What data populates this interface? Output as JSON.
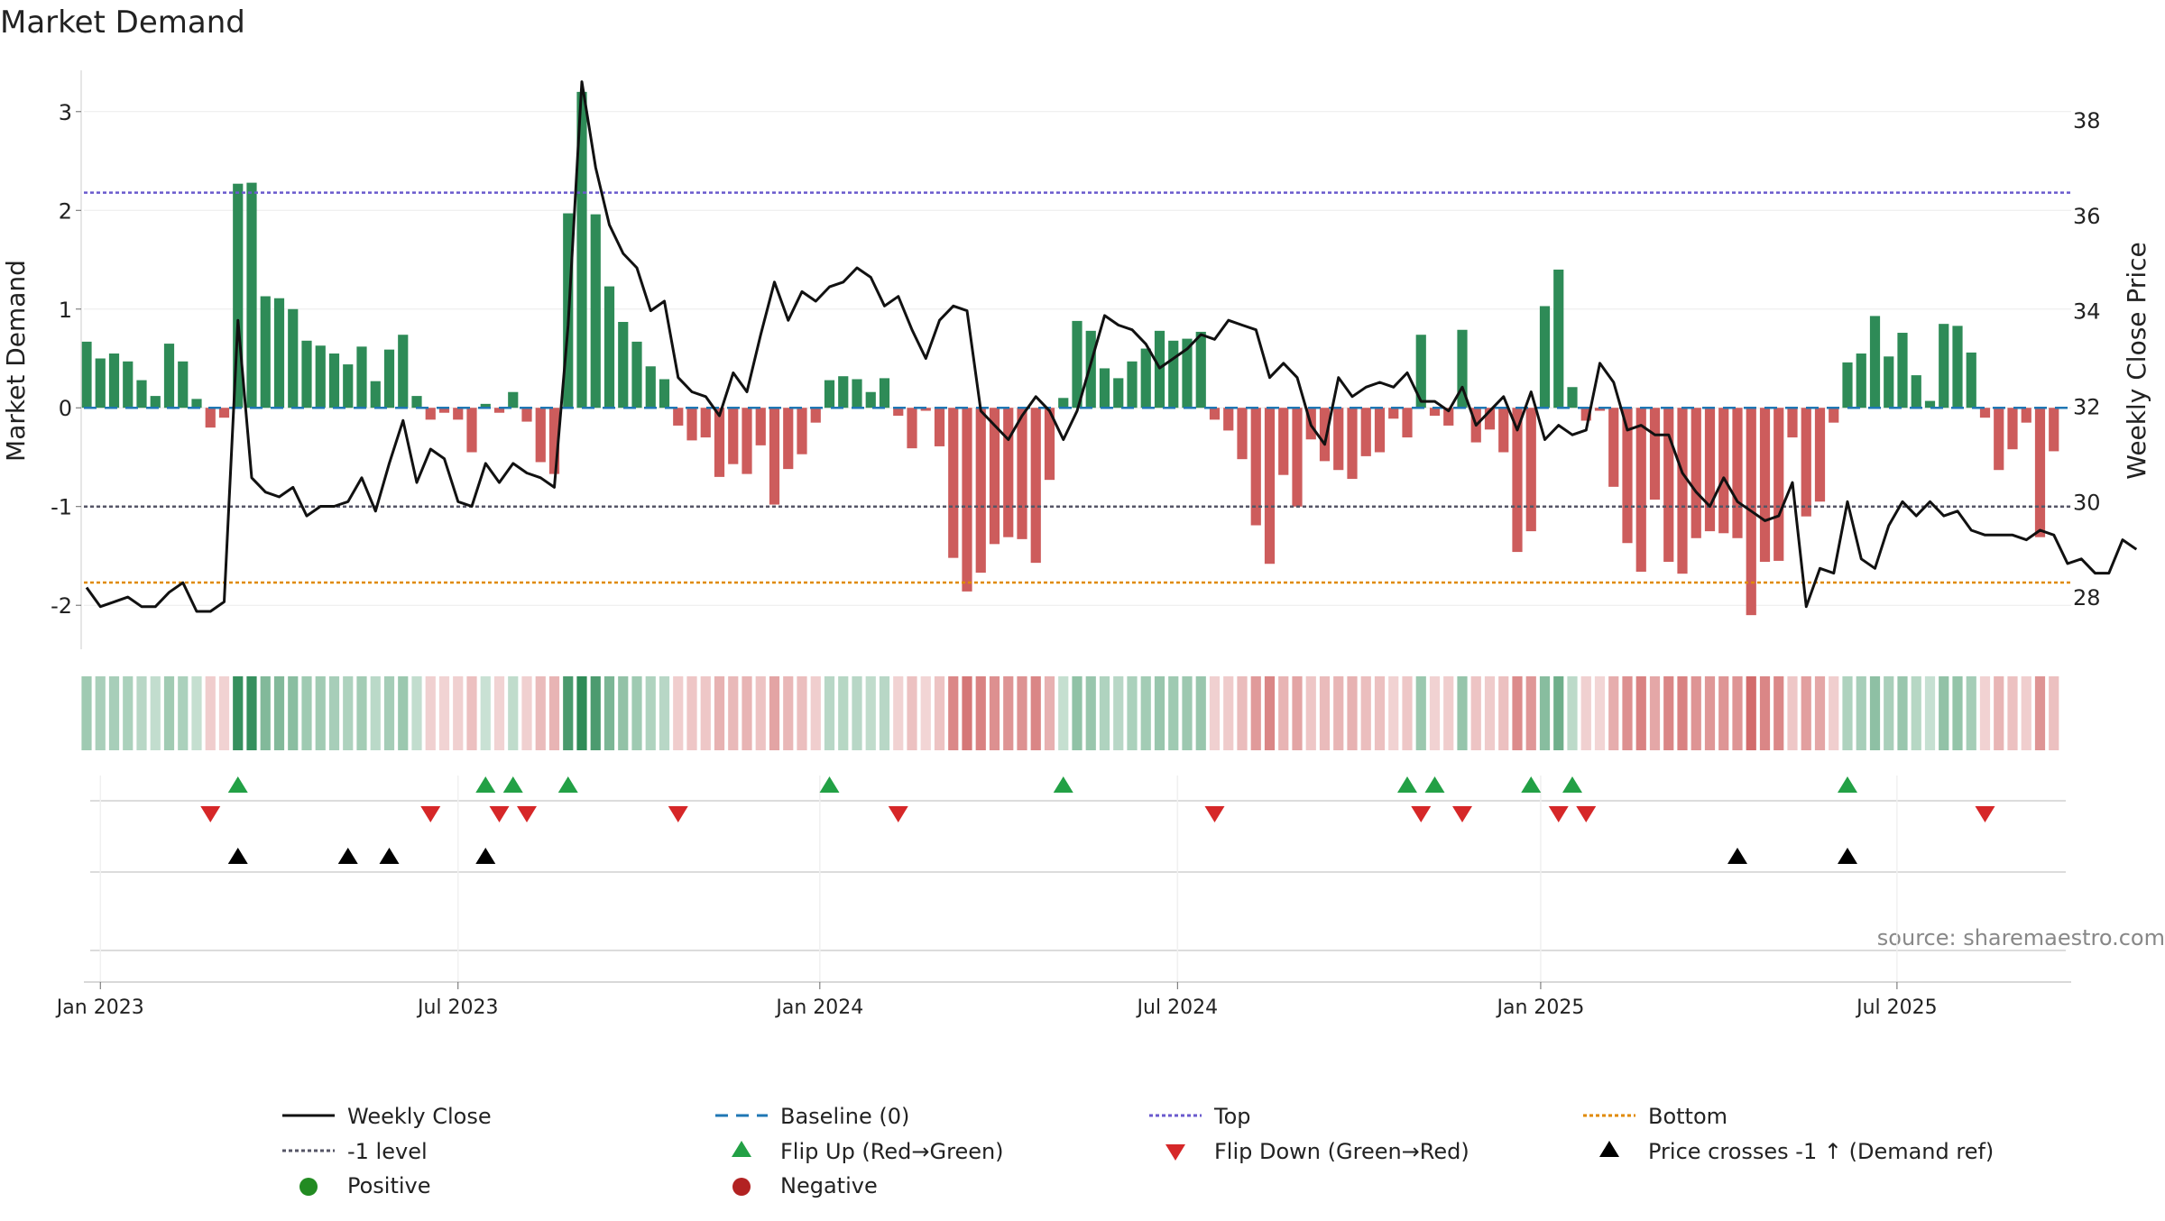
{
  "chart_data": {
    "type": "bar",
    "title": "Market Demand",
    "ylabel": "Market Demand",
    "ylabel_right": "Weekly Close Price",
    "ylim": [
      -2.4,
      3.4
    ],
    "ylim_right": [
      27,
      39
    ],
    "yticks": [
      -2,
      -1,
      0,
      1,
      2,
      3
    ],
    "yticks_right": [
      28,
      30,
      32,
      34,
      36,
      38
    ],
    "x_start": "2022-12-26",
    "xticks": [
      {
        "label": "Jan 2023",
        "week": 1
      },
      {
        "label": "Jul 2023",
        "week": 27
      },
      {
        "label": "Jan 2024",
        "week": 53.3
      },
      {
        "label": "Jul 2024",
        "week": 79.3
      },
      {
        "label": "Jan 2025",
        "week": 105.7
      },
      {
        "label": "Jul 2025",
        "week": 131.6
      }
    ],
    "levels": {
      "top": 2.18,
      "minus_one": -1.0,
      "bottom": -1.77,
      "baseline": 0
    },
    "demand": [
      0.67,
      0.5,
      0.55,
      0.47,
      0.28,
      0.12,
      0.65,
      0.47,
      0.09,
      -0.2,
      -0.1,
      2.27,
      2.28,
      1.13,
      1.11,
      1.0,
      0.68,
      0.63,
      0.55,
      0.44,
      0.62,
      0.27,
      0.59,
      0.74,
      0.12,
      -0.12,
      -0.05,
      -0.12,
      -0.45,
      0.04,
      -0.05,
      0.16,
      -0.14,
      -0.55,
      -0.67,
      1.97,
      3.2,
      1.96,
      1.23,
      0.87,
      0.67,
      0.42,
      0.29,
      -0.18,
      -0.33,
      -0.3,
      -0.7,
      -0.57,
      -0.67,
      -0.38,
      -0.98,
      -0.62,
      -0.47,
      -0.15,
      0.28,
      0.32,
      0.29,
      0.16,
      0.3,
      -0.08,
      -0.41,
      -0.03,
      -0.39,
      -1.52,
      -1.86,
      -1.67,
      -1.38,
      -1.31,
      -1.33,
      -1.57,
      -0.73,
      0.1,
      0.88,
      0.78,
      0.4,
      0.3,
      0.47,
      0.6,
      0.78,
      0.68,
      0.7,
      0.77,
      -0.12,
      -0.23,
      -0.52,
      -1.19,
      -1.58,
      -0.68,
      -1.0,
      -0.32,
      -0.54,
      -0.63,
      -0.72,
      -0.49,
      -0.45,
      -0.11,
      -0.3,
      0.74,
      -0.08,
      -0.18,
      0.79,
      -0.35,
      -0.22,
      -0.45,
      -1.46,
      -1.25,
      1.03,
      1.4,
      0.21,
      -0.13,
      -0.03,
      -0.8,
      -1.37,
      -1.66,
      -0.93,
      -1.56,
      -1.68,
      -1.32,
      -1.25,
      -1.27,
      -1.32,
      -2.1,
      -1.56,
      -1.55,
      -0.3,
      -1.1,
      -0.95,
      -0.15,
      0.46,
      0.55,
      0.93,
      0.52,
      0.76,
      0.33,
      0.07,
      0.85,
      0.83,
      0.56,
      -0.1,
      -0.63,
      -0.42,
      -0.15,
      -1.31,
      -0.44
    ],
    "series": [
      {
        "name": "Weekly Close",
        "values": [
          28.2,
          27.8,
          27.9,
          28.0,
          27.8,
          27.8,
          28.1,
          28.3,
          27.7,
          27.7,
          27.9,
          33.8,
          30.5,
          30.2,
          30.1,
          30.3,
          29.7,
          29.9,
          29.9,
          30.0,
          30.5,
          29.8,
          30.8,
          31.7,
          30.4,
          31.1,
          30.9,
          30.0,
          29.9,
          30.8,
          30.4,
          30.8,
          30.6,
          30.5,
          30.3,
          33.7,
          38.8,
          37.0,
          35.8,
          35.2,
          34.9,
          34.0,
          34.2,
          32.6,
          32.3,
          32.2,
          31.8,
          32.7,
          32.3,
          33.5,
          34.6,
          33.8,
          34.4,
          34.2,
          34.5,
          34.6,
          34.9,
          34.7,
          34.1,
          34.3,
          33.6,
          33.0,
          33.8,
          34.1,
          34.0,
          31.9,
          31.6,
          31.3,
          31.8,
          32.2,
          31.9,
          31.3,
          31.9,
          32.9,
          33.9,
          33.7,
          33.6,
          33.3,
          32.8,
          33.0,
          33.2,
          33.5,
          33.4,
          33.8,
          33.7,
          33.6,
          32.6,
          32.9,
          32.6,
          31.6,
          31.2,
          32.6,
          32.2,
          32.4,
          32.5,
          32.4,
          32.7,
          32.1,
          32.1,
          31.9,
          32.4,
          31.6,
          31.9,
          32.2,
          31.5,
          32.3,
          31.3,
          31.6,
          31.4,
          31.5,
          32.9,
          32.5,
          31.5,
          31.6,
          31.4,
          31.4,
          30.6,
          30.2,
          29.9,
          30.5,
          30.0,
          29.8,
          29.6,
          29.7,
          30.4,
          27.8,
          28.6,
          28.5,
          30.0,
          28.8,
          28.6,
          29.5,
          30.0,
          29.7,
          30.0,
          29.7,
          29.8,
          29.4,
          29.3,
          29.3,
          29.3,
          29.2,
          29.4,
          29.3,
          28.7,
          28.8,
          28.5,
          28.5,
          29.2,
          29.0
        ]
      }
    ],
    "flip_up_weeks": [
      11,
      29,
      31,
      35,
      54,
      71,
      96,
      98,
      105,
      108,
      128
    ],
    "flip_down_weeks": [
      9,
      25,
      30,
      32,
      43,
      59,
      82,
      97,
      100,
      107,
      109,
      138
    ],
    "price_cross_weeks": [
      11,
      19,
      22,
      29,
      120,
      128
    ],
    "legend": [
      {
        "label": "Weekly Close",
        "marker": "line"
      },
      {
        "label": "Baseline (0)",
        "marker": "dash-line"
      },
      {
        "label": "Top",
        "marker": "dot-line"
      },
      {
        "label": "Bottom",
        "marker": "dot-line"
      },
      {
        "label": "-1 level",
        "marker": "dot-line"
      },
      {
        "label": "Flip Up (Red→Green)",
        "marker": "triangle-up"
      },
      {
        "label": "Flip Down (Green→Red)",
        "marker": "triangle-down"
      },
      {
        "label": "Price crosses -1 ↑ (Demand ref)",
        "marker": "triangle-up"
      },
      {
        "label": "Positive",
        "marker": "circle"
      },
      {
        "label": "Negative",
        "marker": "circle"
      }
    ],
    "annotation": "source: sharemaestro.com"
  },
  "colors": {
    "positive": "#2e8b57",
    "negative": "#cd5c5c",
    "price": "#111111",
    "baseline": "#1f77b4",
    "top": "#6a5acd",
    "minus_one": "#555566",
    "bottom": "#e08a00",
    "flip_up": "#22a045",
    "flip_down": "#d62728",
    "cross": "#000000",
    "legend_positive": "#228b22",
    "legend_negative": "#b22222"
  }
}
